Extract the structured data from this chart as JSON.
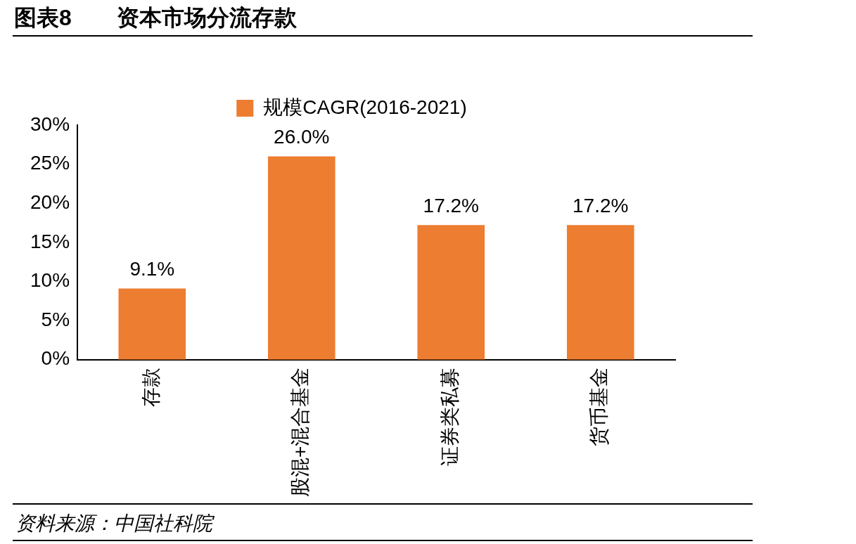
{
  "chart_data": {
    "type": "bar",
    "title": "图表8　　资本市场分流存款",
    "annotations": [
      "资料来源：中国社科院"
    ],
    "categories": [
      "存款",
      "股混+混合基金",
      "证券类私募",
      "货币基金"
    ],
    "series": [
      {
        "name": "规模CAGR(2016-2021)",
        "color": "#ed7d31",
        "values": [
          9.1,
          26.0,
          17.2,
          17.2
        ],
        "value_labels": [
          "9.1%",
          "26.0%",
          "17.2%",
          "17.2%"
        ]
      }
    ],
    "ylim": [
      0,
      30
    ],
    "yticks": [
      {
        "value": 0,
        "label": "0%"
      },
      {
        "value": 5,
        "label": "5%"
      },
      {
        "value": 10,
        "label": "10%"
      },
      {
        "value": 15,
        "label": "15%"
      },
      {
        "value": 20,
        "label": "20%"
      },
      {
        "value": 25,
        "label": "25%"
      },
      {
        "value": 30,
        "label": "30%"
      }
    ],
    "grid": false,
    "legend": "top"
  }
}
